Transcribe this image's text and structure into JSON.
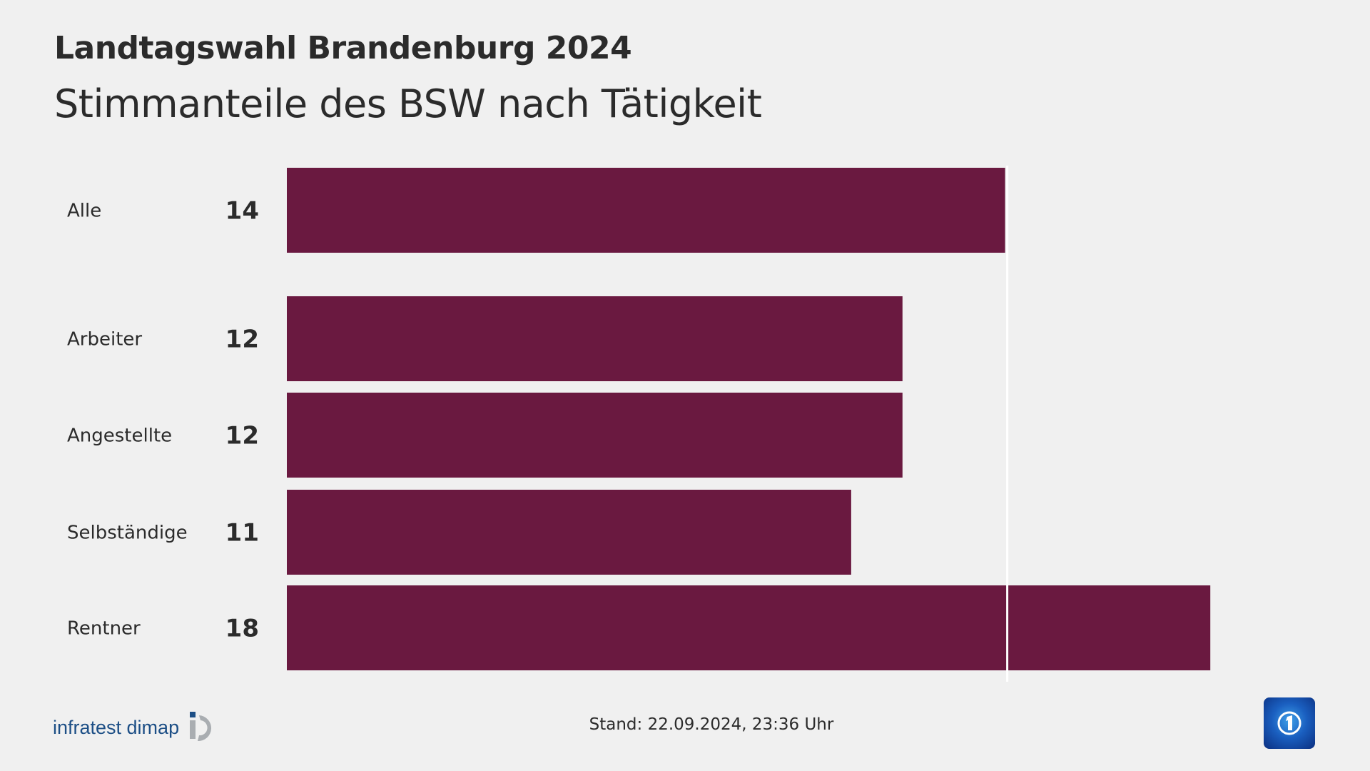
{
  "header": {
    "title": "Landtagswahl Brandenburg 2024",
    "subtitle": "Stimmanteile des BSW nach Tätigkeit"
  },
  "chart_data": {
    "type": "bar",
    "orientation": "horizontal",
    "title": "Stimmanteile des BSW nach Tätigkeit",
    "categories": [
      "Alle",
      "Arbeiter",
      "Angestellte",
      "Selbständige",
      "Rentner"
    ],
    "values": [
      14,
      12,
      12,
      11,
      18
    ],
    "unit": "%",
    "reference_line": 14,
    "xlim": [
      0,
      18
    ],
    "bar_color": "#6a1940",
    "grid": false
  },
  "footer": {
    "stand": "Stand:  22.09.2024, 23:36 Uhr",
    "source_logo": "infratest dimap",
    "broadcaster_logo": "tagesschau-icon"
  }
}
